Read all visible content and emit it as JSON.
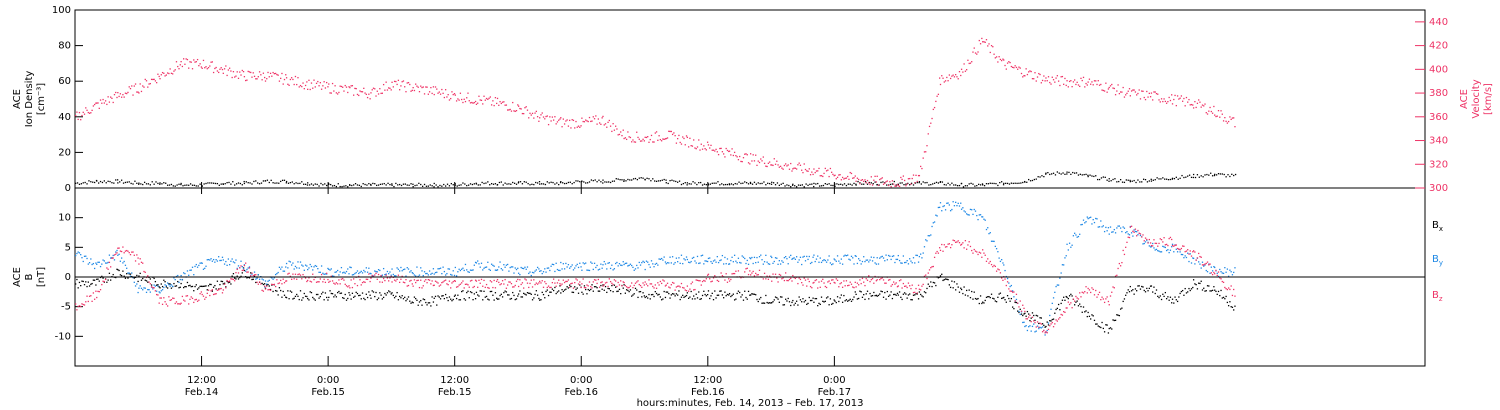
{
  "chart_data": [
    {
      "type": "scatter",
      "panel": "top",
      "ylabel_lines": [
        "ACE",
        "Ion Density",
        "[cm⁻³]"
      ],
      "y2label_lines": [
        "ACE",
        "Velocity",
        "[km/s]"
      ],
      "ylim": [
        0,
        100
      ],
      "yticks": [
        0,
        20,
        40,
        60,
        80,
        100
      ],
      "y2lim": [
        300,
        450
      ],
      "y2ticks": [
        300,
        320,
        340,
        360,
        380,
        400,
        420,
        440
      ],
      "colors": {
        "density": "#000000",
        "velocity": "#ee3366"
      },
      "series": [
        {
          "name": "density",
          "axis": "left",
          "x": [
            0,
            2,
            4,
            6,
            8,
            10,
            12,
            14,
            16,
            18,
            20,
            22,
            24,
            26,
            28,
            30,
            32,
            34,
            36,
            38,
            40,
            42,
            44,
            46,
            48,
            50,
            52,
            54,
            56,
            58,
            60,
            62,
            64,
            66,
            68,
            70,
            72,
            74,
            76,
            78,
            80,
            82,
            84,
            86,
            88,
            90,
            92,
            94,
            96,
            98,
            100,
            102,
            104,
            106,
            108,
            110
          ],
          "values": [
            3,
            4,
            4,
            3,
            3,
            2,
            2,
            3,
            3,
            4,
            4,
            3,
            2,
            2,
            2,
            2,
            2,
            2,
            2,
            3,
            3,
            3,
            3,
            3,
            4,
            4,
            5,
            6,
            4,
            3,
            3,
            3,
            3,
            3,
            2,
            2,
            2,
            3,
            3,
            3,
            3,
            3,
            2,
            2,
            3,
            4,
            8,
            9,
            7,
            5,
            4,
            5,
            6,
            7,
            8,
            7
          ]
        },
        {
          "name": "velocity",
          "axis": "right",
          "x": [
            0,
            2,
            4,
            6,
            8,
            10,
            12,
            14,
            16,
            18,
            20,
            22,
            24,
            26,
            28,
            30,
            32,
            34,
            36,
            38,
            40,
            42,
            44,
            46,
            48,
            50,
            52,
            54,
            56,
            58,
            60,
            62,
            64,
            66,
            68,
            70,
            72,
            74,
            76,
            78,
            80,
            82,
            84,
            86,
            88,
            90,
            92,
            94,
            96,
            98,
            100,
            102,
            104,
            106,
            108,
            110
          ],
          "values": [
            360,
            370,
            378,
            385,
            395,
            405,
            405,
            400,
            395,
            395,
            392,
            388,
            385,
            383,
            380,
            388,
            385,
            382,
            378,
            375,
            372,
            368,
            360,
            356,
            355,
            358,
            345,
            342,
            345,
            340,
            335,
            330,
            325,
            322,
            318,
            315,
            312,
            308,
            306,
            305,
            310,
            392,
            398,
            425,
            405,
            398,
            392,
            390,
            390,
            385,
            380,
            378,
            375,
            372,
            365,
            355
          ]
        }
      ]
    },
    {
      "type": "scatter",
      "panel": "bottom",
      "ylabel_lines": [
        "ACE",
        "B",
        "[nT]"
      ],
      "ylim": [
        -15,
        15
      ],
      "yticks": [
        -10,
        -5,
        0,
        5,
        10
      ],
      "zero_line": true,
      "xlim": [
        0,
        128
      ],
      "xticks": [
        {
          "hour": 12,
          "time": "12:00",
          "date": "Feb.14"
        },
        {
          "hour": 24,
          "time": "0:00",
          "date": "Feb.15"
        },
        {
          "hour": 36,
          "time": "12:00",
          "date": "Feb.15"
        },
        {
          "hour": 48,
          "time": "0:00",
          "date": "Feb.16"
        },
        {
          "hour": 60,
          "time": "12:00",
          "date": "Feb.16"
        },
        {
          "hour": 72,
          "time": "0:00",
          "date": "Feb.17"
        }
      ],
      "xlabel": "hours:minutes, Feb. 14, 2013 – Feb. 17, 2013",
      "colors": {
        "Bx": "#000000",
        "By": "#1e88e5",
        "Bz": "#ee3366"
      },
      "legend": [
        "Bx",
        "By",
        "Bz"
      ],
      "series": [
        {
          "name": "Bx",
          "x": [
            0,
            2,
            4,
            6,
            8,
            10,
            12,
            14,
            16,
            18,
            20,
            22,
            24,
            26,
            28,
            30,
            32,
            34,
            36,
            38,
            40,
            42,
            44,
            46,
            48,
            50,
            52,
            54,
            56,
            58,
            60,
            62,
            64,
            66,
            68,
            70,
            72,
            74,
            76,
            78,
            80,
            82,
            84,
            86,
            88,
            90,
            92,
            94,
            96,
            98,
            100,
            102,
            104,
            106,
            108,
            110
          ],
          "values": [
            -1,
            -1,
            1,
            0,
            -1,
            -1,
            -2,
            -1,
            1,
            -1,
            -3,
            -3,
            -3,
            -3,
            -3,
            -3,
            -4,
            -4,
            -3,
            -3,
            -3,
            -3,
            -3,
            -2,
            -2,
            -2,
            -2,
            -3,
            -3,
            -3,
            -3,
            -3,
            -3,
            -4,
            -4,
            -4,
            -4,
            -3,
            -3,
            -3,
            -3,
            0,
            -2,
            -4,
            -3,
            -6,
            -8,
            -3,
            -6,
            -9,
            -2,
            -2,
            -4,
            -1,
            -2,
            -5
          ]
        },
        {
          "name": "By",
          "x": [
            0,
            2,
            4,
            6,
            8,
            10,
            12,
            14,
            16,
            18,
            20,
            22,
            24,
            26,
            28,
            30,
            32,
            34,
            36,
            38,
            40,
            42,
            44,
            46,
            48,
            50,
            52,
            54,
            56,
            58,
            60,
            62,
            64,
            66,
            68,
            70,
            72,
            74,
            76,
            78,
            80,
            82,
            84,
            86,
            88,
            90,
            92,
            94,
            96,
            98,
            100,
            102,
            104,
            106,
            108,
            110
          ],
          "values": [
            4,
            2,
            4,
            -2,
            -2,
            0,
            2,
            3,
            2,
            -1,
            2,
            2,
            1,
            1,
            1,
            1,
            1,
            1,
            1,
            2,
            2,
            1,
            1,
            2,
            2,
            2,
            2,
            2,
            3,
            3,
            3,
            3,
            3,
            3,
            3,
            3,
            3,
            3,
            3,
            3,
            3,
            12,
            12,
            10,
            2,
            -8,
            -9,
            5,
            10,
            8,
            8,
            5,
            5,
            3,
            1,
            1
          ]
        },
        {
          "name": "Bz",
          "x": [
            0,
            2,
            4,
            6,
            8,
            10,
            12,
            14,
            16,
            18,
            20,
            22,
            24,
            26,
            28,
            30,
            32,
            34,
            36,
            38,
            40,
            42,
            44,
            46,
            48,
            50,
            52,
            54,
            56,
            58,
            60,
            62,
            64,
            66,
            68,
            70,
            72,
            74,
            76,
            78,
            80,
            82,
            84,
            86,
            88,
            90,
            92,
            94,
            96,
            98,
            100,
            102,
            104,
            106,
            108,
            110
          ],
          "values": [
            -5,
            -3,
            5,
            3,
            -4,
            -4,
            -3,
            -2,
            2,
            -2,
            0,
            0,
            0,
            -1,
            0,
            0,
            -1,
            -1,
            -1,
            -1,
            -1,
            -1,
            -1,
            -1,
            -1,
            -1,
            -1,
            -1,
            -1,
            -2,
            0,
            0,
            1,
            0,
            0,
            -1,
            -1,
            -1,
            0,
            -1,
            -2,
            5,
            6,
            4,
            0,
            -6,
            -9,
            -5,
            -2,
            -4,
            8,
            6,
            6,
            4,
            1,
            -3
          ]
        }
      ]
    }
  ]
}
